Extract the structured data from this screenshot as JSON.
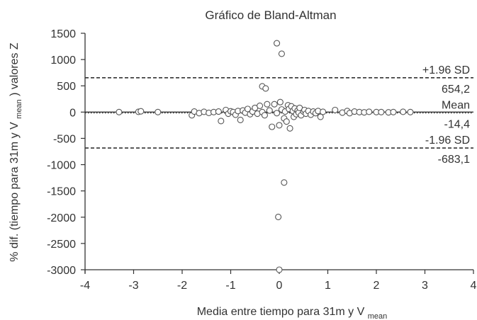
{
  "chart_data": {
    "type": "scatter",
    "title": "Gráfico de Bland-Altman",
    "xlabel": {
      "main": "Media entre tiempo para 31m y V",
      "sub": "mean"
    },
    "ylabel": {
      "pre": "% dif. (tiempo para 31m y V",
      "sub": "mean",
      "post": ") valores Z"
    },
    "xlim": [
      -4,
      4
    ],
    "ylim": [
      -3000,
      1500
    ],
    "x_ticks": [
      -4,
      -3,
      -2,
      -1,
      0,
      1,
      2,
      3,
      4
    ],
    "y_ticks": [
      1500,
      1000,
      500,
      0,
      -500,
      -1000,
      -1500,
      -2000,
      -2500,
      -3000
    ],
    "x_tick_labels": [
      "-4",
      "-3",
      "-2",
      "-1",
      "0",
      "1",
      "2",
      "3",
      "4"
    ],
    "y_tick_labels": [
      "1500",
      "1000",
      "500",
      "0",
      "-500",
      "-1000",
      "-1500",
      "-2000",
      "-2500",
      "-3000"
    ],
    "reference_lines": [
      {
        "kind": "upper",
        "style": "dashed",
        "value": 654.2,
        "label_top": "+1.96 SD",
        "label_bottom": "654,2"
      },
      {
        "kind": "mean",
        "style": "dotted",
        "value": -14.4,
        "label_top": "Mean",
        "label_bottom": "-14,4"
      },
      {
        "kind": "lower",
        "style": "dashed",
        "value": -683.1,
        "label_top": "-1.96 SD",
        "label_bottom": "-683,1"
      }
    ],
    "zero_line": true,
    "grid": false,
    "points": [
      [
        -0.05,
        1310
      ],
      [
        0.05,
        1110
      ],
      [
        -0.35,
        490
      ],
      [
        -0.28,
        450
      ],
      [
        -3.3,
        0
      ],
      [
        -2.9,
        5
      ],
      [
        -2.85,
        15
      ],
      [
        -2.5,
        0
      ],
      [
        -1.8,
        -60
      ],
      [
        -1.75,
        10
      ],
      [
        -1.65,
        -20
      ],
      [
        -1.55,
        5
      ],
      [
        -1.45,
        -15
      ],
      [
        -1.35,
        0
      ],
      [
        -1.25,
        10
      ],
      [
        -1.2,
        -170
      ],
      [
        -1.1,
        40
      ],
      [
        -1.05,
        -30
      ],
      [
        -1.0,
        15
      ],
      [
        -0.95,
        0
      ],
      [
        -0.9,
        -50
      ],
      [
        -0.85,
        20
      ],
      [
        -0.8,
        -150
      ],
      [
        -0.75,
        30
      ],
      [
        -0.7,
        -10
      ],
      [
        -0.65,
        60
      ],
      [
        -0.6,
        -40
      ],
      [
        -0.55,
        10
      ],
      [
        -0.5,
        80
      ],
      [
        -0.45,
        -30
      ],
      [
        -0.4,
        120
      ],
      [
        -0.35,
        0
      ],
      [
        -0.3,
        -60
      ],
      [
        -0.25,
        150
      ],
      [
        -0.2,
        30
      ],
      [
        -0.15,
        -280
      ],
      [
        -0.1,
        150
      ],
      [
        -0.05,
        -20
      ],
      [
        0.0,
        -250
      ],
      [
        0.02,
        190
      ],
      [
        0.05,
        50
      ],
      [
        0.1,
        -120
      ],
      [
        0.12,
        10
      ],
      [
        0.15,
        -180
      ],
      [
        0.18,
        130
      ],
      [
        0.2,
        60
      ],
      [
        0.22,
        -310
      ],
      [
        0.25,
        110
      ],
      [
        0.28,
        20
      ],
      [
        0.3,
        -90
      ],
      [
        0.32,
        70
      ],
      [
        0.35,
        -40
      ],
      [
        0.38,
        30
      ],
      [
        0.4,
        -10
      ],
      [
        0.42,
        80
      ],
      [
        0.45,
        -60
      ],
      [
        0.5,
        10
      ],
      [
        0.52,
        40
      ],
      [
        0.55,
        -30
      ],
      [
        0.6,
        20
      ],
      [
        0.65,
        -50
      ],
      [
        0.7,
        10
      ],
      [
        0.75,
        -20
      ],
      [
        0.8,
        20
      ],
      [
        0.85,
        -90
      ],
      [
        0.9,
        5
      ],
      [
        1.15,
        40
      ],
      [
        1.3,
        -10
      ],
      [
        1.4,
        20
      ],
      [
        1.45,
        -20
      ],
      [
        1.55,
        10
      ],
      [
        1.65,
        0
      ],
      [
        1.75,
        -5
      ],
      [
        1.85,
        5
      ],
      [
        2.0,
        0
      ],
      [
        2.1,
        0
      ],
      [
        2.25,
        -5
      ],
      [
        2.35,
        0
      ],
      [
        2.55,
        5
      ],
      [
        2.7,
        0
      ],
      [
        0.1,
        -1340
      ],
      [
        -0.02,
        -1995
      ],
      [
        0.0,
        -3000
      ]
    ]
  }
}
